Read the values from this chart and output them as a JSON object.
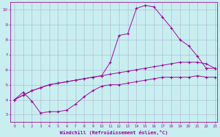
{
  "xlabel": "Windchill (Refroidissement éolien,°C)",
  "bg_color": "#c8eef0",
  "line_color": "#990099",
  "grid_color": "#aab0cc",
  "xlim_min": -0.5,
  "xlim_max": 23.3,
  "ylim_min": 2.5,
  "ylim_max": 10.5,
  "xticks": [
    0,
    1,
    2,
    3,
    4,
    5,
    6,
    7,
    8,
    9,
    10,
    11,
    12,
    13,
    14,
    15,
    16,
    17,
    18,
    19,
    20,
    21,
    22,
    23
  ],
  "yticks": [
    3,
    4,
    5,
    6,
    7,
    8,
    9,
    10
  ],
  "lineA_x": [
    0,
    1,
    2,
    3,
    4,
    5,
    6,
    7,
    8,
    9,
    10,
    11,
    12,
    13,
    14,
    15,
    16,
    17,
    18,
    19,
    20,
    21,
    22,
    23
  ],
  "lineA_y": [
    4.0,
    4.5,
    3.9,
    3.1,
    3.2,
    3.2,
    3.3,
    3.7,
    4.2,
    4.6,
    4.9,
    5.0,
    5.0,
    5.1,
    5.2,
    5.3,
    5.4,
    5.5,
    5.5,
    5.5,
    5.5,
    5.6,
    5.5,
    5.5
  ],
  "lineB_x": [
    0,
    1,
    2,
    3,
    4,
    5,
    6,
    7,
    8,
    9,
    10,
    11,
    12,
    13,
    14,
    15,
    16,
    17,
    18,
    19,
    20,
    21,
    22,
    23
  ],
  "lineB_y": [
    4.0,
    4.3,
    4.6,
    4.8,
    5.0,
    5.1,
    5.2,
    5.3,
    5.4,
    5.5,
    5.6,
    5.7,
    5.8,
    5.9,
    6.0,
    6.1,
    6.2,
    6.3,
    6.4,
    6.5,
    6.5,
    6.5,
    6.4,
    6.1
  ],
  "lineC_x": [
    0,
    1,
    2,
    3,
    4,
    5,
    6,
    7,
    8,
    9,
    10,
    11,
    12,
    13,
    14,
    15,
    16,
    17,
    18,
    19,
    20,
    21,
    22,
    23
  ],
  "lineC_y": [
    4.0,
    4.3,
    4.6,
    4.8,
    5.0,
    5.1,
    5.2,
    5.3,
    5.4,
    5.5,
    5.6,
    6.5,
    8.3,
    8.4,
    10.1,
    10.3,
    10.2,
    9.5,
    8.8,
    8.0,
    7.6,
    6.9,
    6.1,
    6.1
  ]
}
